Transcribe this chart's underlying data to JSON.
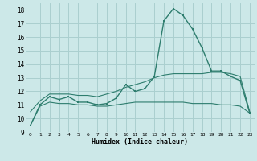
{
  "xlabel": "Humidex (Indice chaleur)",
  "x": [
    0,
    1,
    2,
    3,
    4,
    5,
    6,
    7,
    8,
    9,
    10,
    11,
    12,
    13,
    14,
    15,
    16,
    17,
    18,
    19,
    20,
    21,
    22,
    23
  ],
  "main_y": [
    9.5,
    11.0,
    11.6,
    11.4,
    11.6,
    11.2,
    11.2,
    11.0,
    11.1,
    11.5,
    12.5,
    12.0,
    12.2,
    13.1,
    17.2,
    18.1,
    17.6,
    16.6,
    15.2,
    13.5,
    13.5,
    13.1,
    12.8,
    10.4
  ],
  "upper_y": [
    10.5,
    11.3,
    11.8,
    11.8,
    11.8,
    11.7,
    11.7,
    11.6,
    11.8,
    12.0,
    12.3,
    12.5,
    12.7,
    13.0,
    13.2,
    13.3,
    13.3,
    13.3,
    13.3,
    13.4,
    13.4,
    13.3,
    13.1,
    10.5
  ],
  "lower_y": [
    9.5,
    10.9,
    11.2,
    11.1,
    11.1,
    11.0,
    11.0,
    10.9,
    10.9,
    11.0,
    11.1,
    11.2,
    11.2,
    11.2,
    11.2,
    11.2,
    11.2,
    11.1,
    11.1,
    11.1,
    11.0,
    11.0,
    10.9,
    10.4
  ],
  "line_color": "#2e7d6e",
  "bg_color": "#cce8e8",
  "grid_color": "#aacfcf",
  "ylim": [
    9,
    18.5
  ],
  "yticks": [
    9,
    10,
    11,
    12,
    13,
    14,
    15,
    16,
    17,
    18
  ],
  "xlim": [
    -0.5,
    23.5
  ],
  "xticks": [
    0,
    1,
    2,
    3,
    4,
    5,
    6,
    7,
    8,
    9,
    10,
    11,
    12,
    13,
    14,
    15,
    16,
    17,
    18,
    19,
    20,
    21,
    22,
    23
  ]
}
